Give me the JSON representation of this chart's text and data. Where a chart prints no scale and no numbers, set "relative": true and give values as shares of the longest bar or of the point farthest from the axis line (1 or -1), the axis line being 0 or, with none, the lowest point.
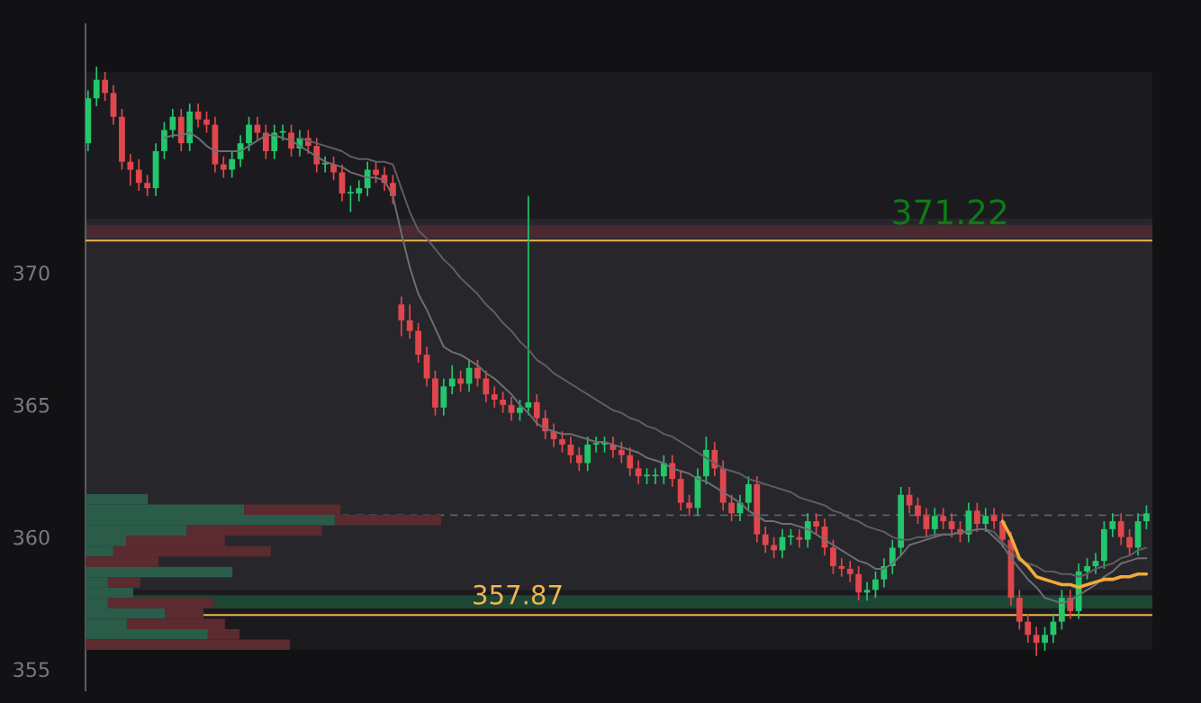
{
  "chart_data": [
    {
      "type": "candlestick",
      "categories": [
        null,
        null,
        null,
        null,
        null,
        null,
        null,
        null,
        null,
        null,
        null,
        null,
        null,
        null,
        null,
        null,
        null,
        null,
        null,
        null,
        null,
        null,
        null,
        null,
        null,
        null,
        null,
        null,
        null,
        null,
        null,
        null,
        null,
        null,
        null,
        null,
        null,
        null,
        null,
        null,
        null,
        null,
        null,
        null,
        null,
        null,
        null,
        null,
        null,
        null,
        null,
        null,
        null,
        null,
        null,
        null,
        null,
        null,
        null,
        null,
        null,
        null,
        null,
        null,
        null,
        null,
        null,
        null,
        null,
        null,
        null,
        null,
        null,
        null,
        null,
        null,
        null,
        null,
        null,
        null,
        null,
        null,
        null,
        null,
        null,
        null,
        null,
        null,
        null,
        null,
        null,
        null,
        null,
        null,
        null,
        null,
        null,
        null,
        null,
        null,
        null,
        null,
        null,
        null,
        null,
        null,
        null,
        null,
        null,
        null,
        null,
        null,
        null,
        null,
        null,
        null,
        null,
        null,
        null,
        null,
        null,
        null,
        null,
        null,
        null,
        null
      ],
      "ohlc": [
        [
          374.9,
          376.9,
          374.6,
          376.6
        ],
        [
          376.6,
          377.8,
          376.3,
          377.3
        ],
        [
          377.3,
          377.6,
          376.5,
          376.8
        ],
        [
          376.8,
          377.1,
          375.6,
          375.9
        ],
        [
          375.9,
          376.2,
          373.9,
          374.2
        ],
        [
          374.2,
          374.5,
          373.3,
          373.9
        ],
        [
          373.9,
          374.3,
          373.1,
          373.4
        ],
        [
          373.4,
          373.7,
          372.9,
          373.2
        ],
        [
          373.2,
          374.9,
          372.9,
          374.6
        ],
        [
          374.6,
          375.7,
          374.3,
          375.4
        ],
        [
          375.4,
          376.2,
          375.1,
          375.9
        ],
        [
          375.9,
          376.2,
          374.6,
          374.9
        ],
        [
          374.9,
          376.4,
          374.6,
          376.1
        ],
        [
          376.1,
          376.4,
          375.5,
          375.8
        ],
        [
          375.8,
          376.1,
          375.3,
          375.6
        ],
        [
          375.6,
          375.9,
          373.8,
          374.1
        ],
        [
          374.1,
          374.4,
          373.6,
          373.9
        ],
        [
          373.9,
          374.6,
          373.6,
          374.3
        ],
        [
          374.3,
          375.2,
          374.0,
          374.9
        ],
        [
          374.9,
          375.9,
          374.6,
          375.6
        ],
        [
          375.6,
          375.9,
          375.0,
          375.3
        ],
        [
          375.3,
          375.6,
          374.3,
          374.6
        ],
        [
          374.6,
          375.6,
          374.3,
          375.3
        ],
        [
          375.3,
          375.6,
          375.0,
          375.3
        ],
        [
          375.3,
          375.6,
          374.4,
          374.7
        ],
        [
          374.7,
          375.4,
          374.4,
          375.1
        ],
        [
          375.1,
          375.4,
          374.5,
          374.8
        ],
        [
          374.8,
          375.1,
          373.8,
          374.1
        ],
        [
          374.1,
          374.4,
          373.8,
          374.1
        ],
        [
          374.1,
          374.4,
          373.5,
          373.8
        ],
        [
          373.8,
          374.1,
          372.7,
          373.0
        ],
        [
          373.0,
          373.3,
          372.3,
          373.0
        ],
        [
          373.0,
          373.5,
          372.7,
          373.2
        ],
        [
          373.2,
          374.2,
          372.9,
          373.9
        ],
        [
          373.9,
          374.2,
          373.4,
          373.7
        ],
        [
          373.7,
          374.0,
          373.1,
          373.4
        ],
        [
          373.4,
          373.7,
          372.6,
          372.9
        ],
        [
          368.8,
          369.1,
          367.6,
          368.2
        ],
        [
          368.2,
          368.8,
          367.5,
          367.8
        ],
        [
          367.8,
          368.1,
          366.6,
          366.9
        ],
        [
          366.9,
          367.2,
          365.7,
          366.0
        ],
        [
          366.0,
          366.3,
          364.6,
          364.9
        ],
        [
          364.9,
          366.0,
          364.6,
          365.7
        ],
        [
          365.7,
          366.5,
          365.4,
          366.0
        ],
        [
          366.0,
          366.3,
          365.5,
          365.8
        ],
        [
          365.8,
          366.7,
          365.5,
          366.4
        ],
        [
          366.4,
          366.7,
          365.7,
          366.0
        ],
        [
          366.0,
          366.3,
          365.1,
          365.4
        ],
        [
          365.4,
          365.7,
          364.9,
          365.2
        ],
        [
          365.2,
          365.5,
          364.7,
          365.0
        ],
        [
          365.0,
          365.3,
          364.4,
          364.7
        ],
        [
          364.7,
          365.2,
          364.4,
          364.9
        ],
        [
          364.9,
          372.9,
          364.6,
          365.1
        ],
        [
          365.1,
          365.4,
          364.2,
          364.5
        ],
        [
          364.5,
          364.8,
          363.7,
          364.0
        ],
        [
          364.0,
          364.3,
          363.4,
          363.7
        ],
        [
          363.7,
          364.0,
          363.2,
          363.5
        ],
        [
          363.5,
          363.8,
          362.8,
          363.1
        ],
        [
          363.1,
          363.4,
          362.5,
          362.8
        ],
        [
          362.8,
          363.8,
          362.5,
          363.5
        ],
        [
          363.5,
          363.8,
          363.2,
          363.5
        ],
        [
          363.5,
          363.8,
          363.2,
          363.5
        ],
        [
          363.5,
          363.8,
          363.0,
          363.3
        ],
        [
          363.3,
          363.6,
          362.8,
          363.1
        ],
        [
          363.1,
          363.4,
          362.3,
          362.6
        ],
        [
          362.6,
          362.9,
          362.0,
          362.3
        ],
        [
          362.3,
          362.6,
          362.0,
          362.3
        ],
        [
          362.3,
          362.6,
          362.0,
          362.3
        ],
        [
          362.3,
          363.1,
          362.0,
          362.8
        ],
        [
          362.8,
          363.1,
          361.9,
          362.2
        ],
        [
          362.2,
          362.5,
          361.0,
          361.3
        ],
        [
          361.3,
          361.6,
          360.8,
          361.1
        ],
        [
          361.1,
          362.6,
          360.8,
          362.3
        ],
        [
          362.3,
          363.8,
          362.0,
          363.3
        ],
        [
          363.3,
          363.6,
          362.3,
          362.6
        ],
        [
          362.6,
          362.9,
          361.0,
          361.3
        ],
        [
          361.3,
          361.6,
          360.6,
          360.9
        ],
        [
          360.9,
          361.6,
          360.6,
          361.3
        ],
        [
          361.3,
          362.3,
          361.0,
          362.0
        ],
        [
          362.0,
          362.3,
          359.8,
          360.1
        ],
        [
          360.1,
          360.4,
          359.4,
          359.7
        ],
        [
          359.7,
          360.0,
          359.2,
          359.5
        ],
        [
          359.5,
          360.3,
          359.2,
          360.0
        ],
        [
          360.0,
          360.3,
          359.7,
          360.0
        ],
        [
          360.0,
          360.3,
          359.6,
          359.9
        ],
        [
          359.9,
          360.9,
          359.6,
          360.6
        ],
        [
          360.6,
          360.9,
          360.1,
          360.4
        ],
        [
          360.4,
          360.7,
          359.3,
          359.6
        ],
        [
          359.6,
          359.9,
          358.6,
          358.9
        ],
        [
          358.9,
          359.2,
          358.5,
          358.8
        ],
        [
          358.8,
          359.1,
          358.3,
          358.6
        ],
        [
          358.6,
          358.9,
          357.6,
          357.9
        ],
        [
          357.9,
          358.3,
          357.6,
          358.0
        ],
        [
          358.0,
          358.7,
          357.7,
          358.4
        ],
        [
          358.4,
          359.2,
          358.1,
          358.9
        ],
        [
          358.9,
          359.9,
          358.6,
          359.6
        ],
        [
          359.6,
          361.9,
          359.3,
          361.6
        ],
        [
          361.6,
          361.9,
          360.9,
          361.2
        ],
        [
          361.2,
          361.5,
          360.5,
          360.8
        ],
        [
          360.8,
          361.1,
          360.0,
          360.3
        ],
        [
          360.3,
          361.1,
          360.0,
          360.8
        ],
        [
          360.8,
          361.1,
          360.3,
          360.6
        ],
        [
          360.6,
          360.9,
          360.0,
          360.3
        ],
        [
          360.3,
          360.6,
          359.8,
          360.1
        ],
        [
          360.1,
          361.3,
          359.8,
          361.0
        ],
        [
          361.0,
          361.3,
          360.2,
          360.5
        ],
        [
          360.5,
          361.1,
          360.2,
          360.8
        ],
        [
          360.8,
          361.1,
          360.3,
          360.6
        ],
        [
          360.6,
          360.9,
          359.6,
          359.9
        ],
        [
          359.9,
          360.2,
          357.4,
          357.7
        ],
        [
          357.7,
          358.0,
          356.5,
          356.8
        ],
        [
          356.8,
          357.1,
          356.0,
          356.3
        ],
        [
          356.3,
          356.6,
          355.5,
          356.0
        ],
        [
          356.0,
          356.6,
          355.7,
          356.3
        ],
        [
          356.3,
          357.1,
          356.0,
          356.8
        ],
        [
          356.8,
          358.0,
          356.5,
          357.7
        ],
        [
          357.7,
          358.0,
          356.9,
          357.2
        ],
        [
          357.2,
          359.0,
          356.9,
          358.7
        ],
        [
          358.7,
          359.2,
          358.4,
          358.9
        ],
        [
          358.9,
          359.4,
          358.6,
          359.1
        ],
        [
          359.1,
          360.6,
          358.8,
          360.3
        ],
        [
          360.3,
          360.9,
          360.0,
          360.6
        ],
        [
          360.6,
          360.9,
          359.7,
          360.0
        ],
        [
          360.0,
          360.3,
          359.3,
          359.6
        ],
        [
          359.6,
          360.9,
          359.3,
          360.6
        ],
        [
          360.6,
          361.2,
          360.3,
          360.9
        ]
      ],
      "series": [
        {
          "type": "line",
          "color": "#5e5e64",
          "values": [
            null,
            null,
            null,
            null,
            null,
            null,
            null,
            null,
            null,
            null,
            null,
            null,
            null,
            null,
            null,
            null,
            null,
            null,
            null,
            null,
            null,
            null,
            null,
            null,
            null,
            375.1,
            375.0,
            374.9,
            374.8,
            374.7,
            374.6,
            374.4,
            374.3,
            374.3,
            374.2,
            374.2,
            374.1,
            373.2,
            372.3,
            371.6,
            371.3,
            370.9,
            370.5,
            370.2,
            369.8,
            369.5,
            369.2,
            368.8,
            368.5,
            368.1,
            367.8,
            367.4,
            367.1,
            366.7,
            366.5,
            366.2,
            366.0,
            365.8,
            365.6,
            365.4,
            365.2,
            365.0,
            364.8,
            364.7,
            364.5,
            364.4,
            364.2,
            364.1,
            363.9,
            363.8,
            363.6,
            363.4,
            363.2,
            363.0,
            362.8,
            362.6,
            362.5,
            362.4,
            362.2,
            362.1,
            362.0,
            361.9,
            361.8,
            361.7,
            361.5,
            361.4,
            361.3,
            361.2,
            361.0,
            360.9,
            360.7,
            360.6,
            360.4,
            360.3,
            360.2,
            360.0,
            359.9,
            359.9,
            360.0,
            360.0,
            360.1,
            360.1,
            360.1,
            360.2,
            360.2,
            360.3,
            360.3,
            360.2,
            359.8,
            359.5,
            359.1,
            359.0,
            358.9,
            358.7,
            358.7,
            358.6,
            358.6,
            358.5,
            358.6,
            358.8,
            358.9,
            359.0,
            359.2,
            359.3,
            359.5,
            359.6
          ]
        },
        {
          "type": "line",
          "color": "#6e6e74",
          "values": [
            null,
            null,
            null,
            null,
            null,
            null,
            null,
            null,
            null,
            375.1,
            375.2,
            375.2,
            375.3,
            375.1,
            374.8,
            374.6,
            374.6,
            374.6,
            374.6,
            374.8,
            375.0,
            375.2,
            375.2,
            375.1,
            375.0,
            374.8,
            374.6,
            374.4,
            374.2,
            374.1,
            374.0,
            373.8,
            373.7,
            373.6,
            373.6,
            373.5,
            372.9,
            371.5,
            370.2,
            369.2,
            368.6,
            367.9,
            367.2,
            367.0,
            366.9,
            366.7,
            366.5,
            366.2,
            366.0,
            365.7,
            365.4,
            365.0,
            364.7,
            364.3,
            364.1,
            364.0,
            363.9,
            363.9,
            363.8,
            363.7,
            363.6,
            363.6,
            363.5,
            363.4,
            363.3,
            363.2,
            363.0,
            362.9,
            362.8,
            362.6,
            362.5,
            362.4,
            362.2,
            362.1,
            361.9,
            361.7,
            361.5,
            361.3,
            361.0,
            360.8,
            360.6,
            360.6,
            360.5,
            360.5,
            360.4,
            360.3,
            360.1,
            359.9,
            359.7,
            359.5,
            359.3,
            359.1,
            359.0,
            358.8,
            358.8,
            359.0,
            359.3,
            359.7,
            359.8,
            359.9,
            360.0,
            360.1,
            360.1,
            360.2,
            360.2,
            360.3,
            360.3,
            360.0,
            359.7,
            359.2,
            358.8,
            358.4,
            358.1,
            357.7,
            357.6,
            357.5,
            357.6,
            357.8,
            358.0,
            358.2,
            358.5,
            358.7,
            359.0,
            359.1,
            359.2,
            359.2
          ]
        },
        {
          "type": "line",
          "color": "#f2aa3a",
          "values": [
            null,
            null,
            null,
            null,
            null,
            null,
            null,
            null,
            null,
            null,
            null,
            null,
            null,
            null,
            null,
            null,
            null,
            null,
            null,
            null,
            null,
            null,
            null,
            null,
            null,
            null,
            null,
            null,
            null,
            null,
            null,
            null,
            null,
            null,
            null,
            null,
            null,
            null,
            null,
            null,
            null,
            null,
            null,
            null,
            null,
            null,
            null,
            null,
            null,
            null,
            null,
            null,
            null,
            null,
            null,
            null,
            null,
            null,
            null,
            null,
            null,
            null,
            null,
            null,
            null,
            null,
            null,
            null,
            null,
            null,
            null,
            null,
            null,
            null,
            null,
            null,
            null,
            null,
            null,
            null,
            null,
            null,
            null,
            null,
            null,
            null,
            null,
            null,
            null,
            null,
            null,
            null,
            null,
            null,
            null,
            null,
            null,
            null,
            null,
            null,
            null,
            null,
            null,
            null,
            null,
            null,
            null,
            null,
            360.6,
            360.0,
            359.2,
            358.9,
            358.5,
            358.4,
            358.3,
            358.2,
            358.2,
            358.1,
            358.2,
            358.3,
            358.4,
            358.4,
            358.5,
            358.5,
            358.6,
            358.6
          ]
        }
      ],
      "ylim": [
        354.2,
        379.4
      ],
      "yticks": [
        355,
        360,
        365,
        370
      ],
      "tick_labels": "y",
      "grid": false,
      "ref_lines": [
        {
          "axis": "y",
          "value": 371.22,
          "label": "371.22",
          "color": "#f2b450"
        },
        {
          "axis": "y",
          "value": 357.05,
          "color": "#f2b450"
        },
        {
          "axis": "y",
          "value": 360.83,
          "color": "#5c6070",
          "line_style": "dashed"
        }
      ],
      "bands": [
        {
          "axis": "y",
          "from": 355.75,
          "to": 377.6,
          "color": "#1b1b1f"
        },
        {
          "axis": "y",
          "from": 358.0,
          "to": 372.05,
          "color": "#27272b"
        },
        {
          "axis": "y",
          "from": 371.3,
          "to": 371.8,
          "color": "#4a2a30"
        },
        {
          "axis": "y",
          "from": 357.3,
          "to": 357.8,
          "color": "#1f4535"
        }
      ],
      "annotations": [
        "357.87"
      ]
    },
    {
      "type": "bar",
      "orientation": "horizontal",
      "stacked": true,
      "relative": true,
      "tick_labels": false,
      "categories": [
        null,
        null,
        null,
        null,
        null,
        null,
        null,
        null,
        null,
        null,
        null,
        null,
        null,
        null,
        null
      ],
      "series": [
        {
          "color": "#2b5c4a",
          "values": [
            0.175,
            0.446,
            0.701,
            0.284,
            0.114,
            0.078,
            0,
            0.413,
            0.063,
            0.134,
            0.063,
            0.223,
            0.116,
            0.344,
            0
          ]
        },
        {
          "color": "#5c2b2f",
          "values": [
            0,
            0.271,
            0.299,
            0.38,
            0.278,
            0.443,
            0.205,
            0,
            0.091,
            0,
            0.299,
            0.109,
            0.276,
            0.089,
            0.575
          ]
        }
      ]
    }
  ]
}
